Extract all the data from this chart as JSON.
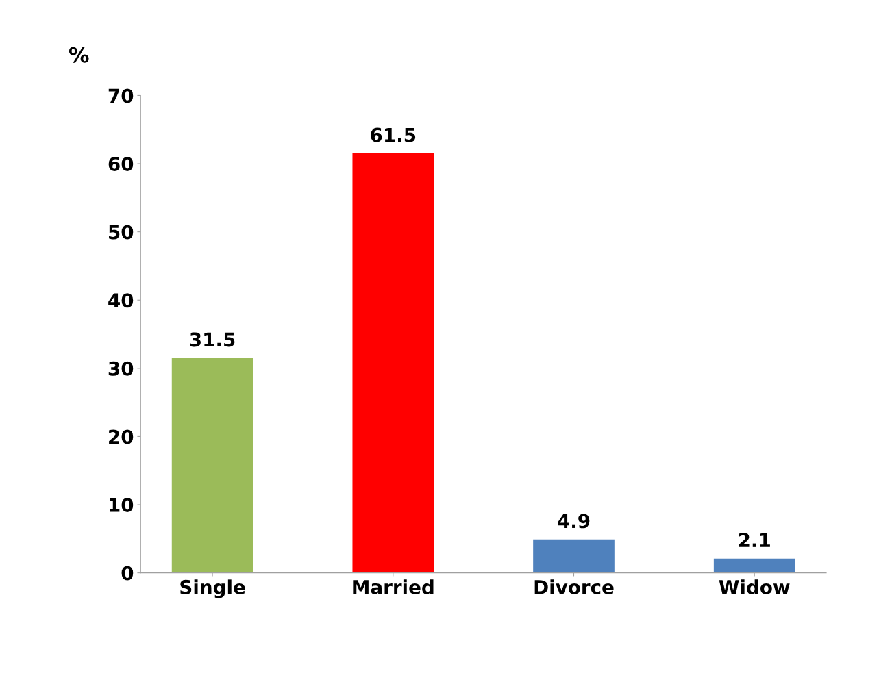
{
  "chart_data": {
    "type": "bar",
    "ylabel": "%",
    "categories": [
      "Single",
      "Married",
      "Divorce",
      "Widow"
    ],
    "values": [
      31.5,
      61.5,
      4.9,
      2.1
    ],
    "colors": [
      "#9bbb59",
      "#ff0000",
      "#4f81bd",
      "#4f81bd"
    ],
    "ylim": [
      0,
      70
    ],
    "yticks": [
      0,
      10,
      20,
      30,
      40,
      50,
      60,
      70
    ],
    "data_labels": true,
    "grid": false,
    "legend": false
  }
}
